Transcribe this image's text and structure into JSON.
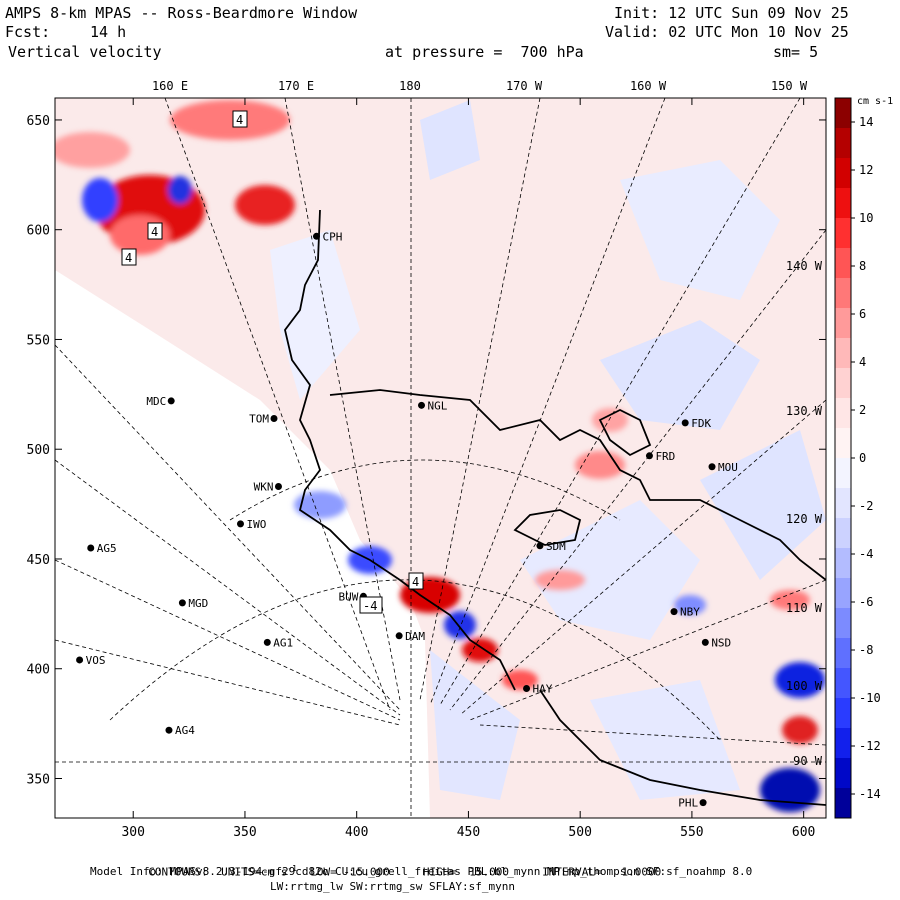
{
  "header": {
    "title": "AMPS 8-km MPAS -- Ross-Beardmore Window",
    "fcst_label": "Fcst:",
    "fcst_value": "14 h",
    "field": "Vertical velocity",
    "level": "at pressure =  700 hPa",
    "init": "Init: 12 UTC Sun 09 Nov 25",
    "valid": "Valid: 02 UTC Mon 10 Nov 25",
    "smooth": "sm= 5"
  },
  "map": {
    "top_lon_labels": [
      "160 E",
      "170 E",
      "180",
      "170 W",
      "160 W",
      "150 W"
    ],
    "x_ticks": [
      300,
      350,
      400,
      450,
      500,
      550,
      600
    ],
    "y_ticks": [
      650,
      600,
      550,
      500,
      450,
      400,
      350
    ],
    "x_range": [
      265,
      610
    ],
    "y_range": [
      332,
      660
    ],
    "lon_line_labels": [
      "140 W",
      "130 W",
      "120 W",
      "110 W",
      "100 W",
      "90 W"
    ],
    "stations": [
      {
        "name": "CPH",
        "x": 382,
        "y": 597
      },
      {
        "name": "MDC",
        "x": 317,
        "y": 522
      },
      {
        "name": "NGL",
        "x": 429,
        "y": 520
      },
      {
        "name": "TOM",
        "x": 363,
        "y": 514
      },
      {
        "name": "FDK",
        "x": 547,
        "y": 512
      },
      {
        "name": "FRD",
        "x": 531,
        "y": 497
      },
      {
        "name": "MOU",
        "x": 559,
        "y": 492
      },
      {
        "name": "WKN",
        "x": 365,
        "y": 483
      },
      {
        "name": "IWO",
        "x": 348,
        "y": 466
      },
      {
        "name": "AG5",
        "x": 281,
        "y": 455
      },
      {
        "name": "SDM",
        "x": 482,
        "y": 456
      },
      {
        "name": "BUW",
        "x": 403,
        "y": 433
      },
      {
        "name": "MGD",
        "x": 322,
        "y": 430
      },
      {
        "name": "NBY",
        "x": 542,
        "y": 426
      },
      {
        "name": "DAM",
        "x": 419,
        "y": 415
      },
      {
        "name": "AG1",
        "x": 360,
        "y": 412
      },
      {
        "name": "NSD",
        "x": 556,
        "y": 412
      },
      {
        "name": "VOS",
        "x": 276,
        "y": 404
      },
      {
        "name": "HAY",
        "x": 476,
        "y": 391
      },
      {
        "name": "AG4",
        "x": 316,
        "y": 372
      },
      {
        "name": "PHL",
        "x": 555,
        "y": 339
      }
    ],
    "contour_box_labels": [
      "4",
      "4",
      "4",
      "4",
      "-4"
    ]
  },
  "colorbar": {
    "unit": "cm s-1",
    "labels": [
      "14",
      "12",
      "10",
      "8",
      "6",
      "4",
      "2",
      "0",
      "-2",
      "-4",
      "-6",
      "-8",
      "-10",
      "-12",
      "-14"
    ],
    "colors": [
      "#8c0000",
      "#b40000",
      "#d20000",
      "#ee1010",
      "#ff3030",
      "#ff5555",
      "#ff7878",
      "#ff9a9a",
      "#ffb9b9",
      "#ffd2d2",
      "#ffe6e6",
      "#fff3f3",
      "#f3f4ff",
      "#e2e5ff",
      "#ccd2ff",
      "#b3bcff",
      "#98a4ff",
      "#7c8bff",
      "#5f70ff",
      "#4456ff",
      "#2a3cff",
      "#1220ec",
      "#0008c8",
      "#00009a"
    ]
  },
  "footer": {
    "contours_key": "CONTOURS:",
    "units_text": "UNITS=cm s",
    "units_exp": "-1",
    "low": "LOW= -15.000",
    "high": "HIGH=  15.000",
    "interval": "INTERVAL=   1.0000",
    "model_info": "Model Info: MPASv8.2.3-194-gf29cd82c CU:cu_grell_freitas PBL:bl_mynn MP:mp_thompson SF:sf_noahmp 8.0",
    "model_info2": "LW:rrtmg_lw SW:rrtmg_sw SFLAY:sf_mynn"
  }
}
